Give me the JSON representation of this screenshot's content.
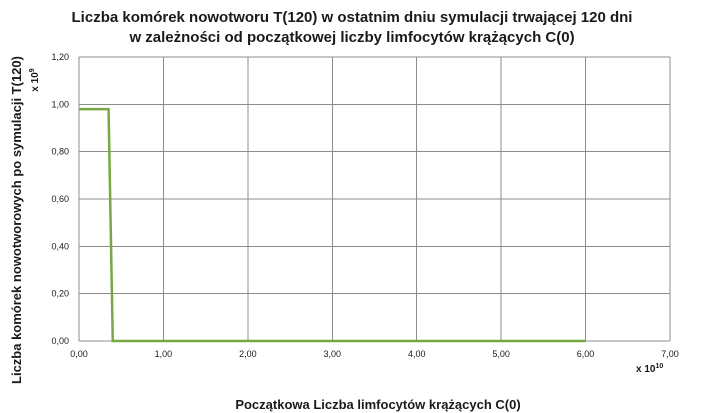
{
  "chart_data": {
    "type": "line",
    "title_lines": [
      "Liczba komórek nowotworu T(120) w ostatnim dniu symulacji trwającej 120 dni",
      "w zależności od początkowej liczby limfocytów krążących C(0)"
    ],
    "xlabel": "Początkowa Liczba limfocytów krążących  C(0)",
    "ylabel": "Liczba komórek nowotworowych po symulacji T(120)",
    "x_multiplier": {
      "base": "x 10",
      "exp": "10"
    },
    "y_multiplier": {
      "base": "x 10",
      "exp": "9"
    },
    "xlim": [
      0,
      7
    ],
    "ylim": [
      0,
      1.2
    ],
    "x_ticks": [
      0,
      1,
      2,
      3,
      4,
      5,
      6,
      7
    ],
    "x_tick_labels": [
      "0,00",
      "1,00",
      "2,00",
      "3,00",
      "4,00",
      "5,00",
      "6,00",
      "7,00"
    ],
    "y_ticks": [
      0,
      0.2,
      0.4,
      0.6,
      0.8,
      1.0,
      1.2
    ],
    "y_tick_labels": [
      "0,00",
      "0,20",
      "0,40",
      "0,60",
      "0,80",
      "1,00",
      "1,20"
    ],
    "grid": true,
    "legend": "none",
    "series": [
      {
        "color": "#77a844",
        "x": [
          0.0,
          0.35,
          0.4,
          6.0
        ],
        "y": [
          0.98,
          0.98,
          0.0,
          0.0
        ]
      }
    ]
  }
}
